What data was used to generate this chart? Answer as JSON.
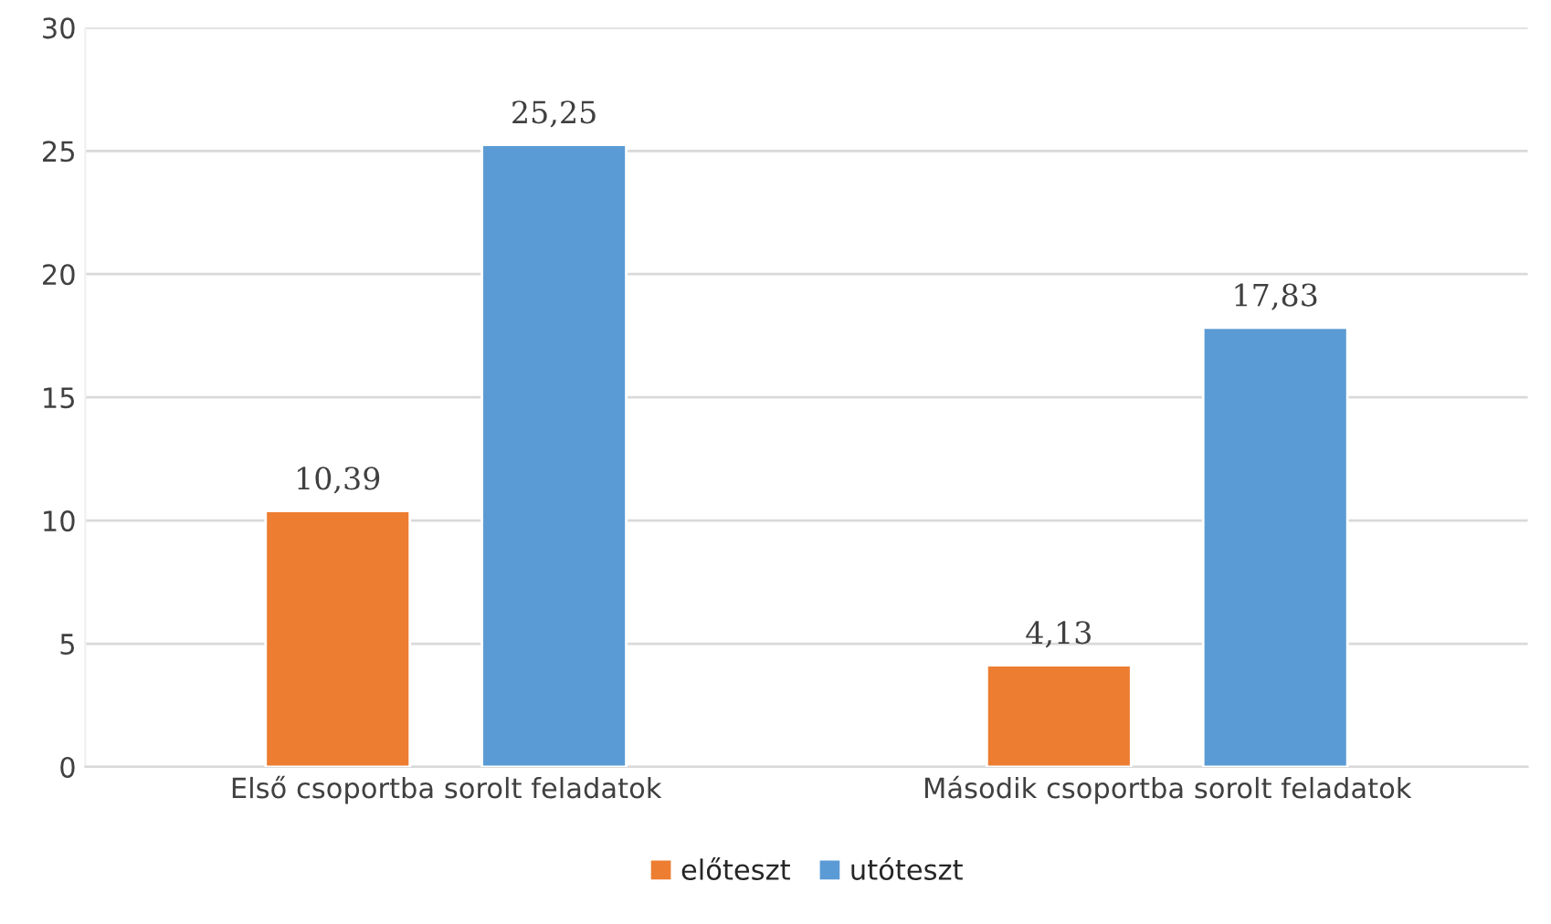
{
  "chart_data": {
    "type": "bar",
    "categories": [
      "Első csoportba sorolt feladatok",
      "Második csoportba sorolt feladatok"
    ],
    "series": [
      {
        "name": "előteszt",
        "color": "#ed7d31",
        "values": [
          10.39,
          4.13
        ],
        "value_labels": [
          "10,39",
          "4,13"
        ]
      },
      {
        "name": "utóteszt",
        "color": "#5b9bd5",
        "values": [
          25.25,
          17.83
        ],
        "value_labels": [
          "25,25",
          "17,83"
        ]
      }
    ],
    "ylim": [
      0,
      30
    ],
    "yticks": [
      0,
      5,
      10,
      15,
      20,
      25,
      30
    ],
    "grid": "y",
    "legend": "bottom"
  }
}
